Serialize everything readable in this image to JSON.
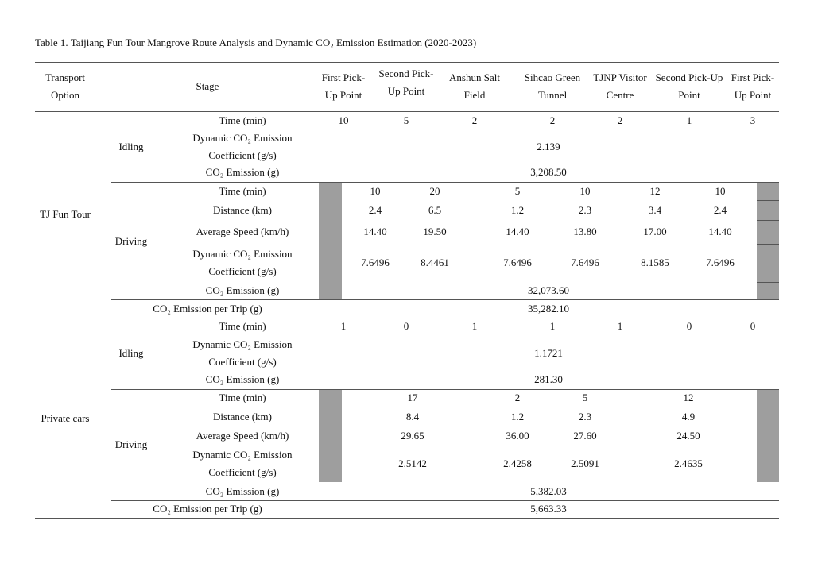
{
  "title": "Table 1. Taijiang Fun Tour Mangrove Route Analysis and Dynamic CO₂ Emission Estimation (2020-2023)",
  "table": {
    "header": {
      "transport_option": "Transport Option",
      "stage": "Stage",
      "locations": [
        "First Pick-Up Point",
        "Second Pick-Up Point",
        "Anshun Salt Field",
        "Sihcao Green Tunnel",
        "TJNP Visitor Centre",
        "Second Pick-Up Point",
        "First Pick-Up Point"
      ]
    },
    "sections": [
      {
        "option": "TJ Fun Tour",
        "idling": {
          "label": "Idling",
          "time": {
            "label": "Time (min)",
            "values": [
              "10",
              "5",
              "2",
              "2",
              "2",
              "1",
              "3"
            ]
          },
          "coefficient": {
            "label": "Dynamic CO₂ Emission Coefficient (g/s)",
            "value": "2.139"
          },
          "emission": {
            "label": "CO₂ Emission (g)",
            "value": "3,208.50"
          }
        },
        "driving": {
          "label": "Driving",
          "time": {
            "label": "Time (min)",
            "values": [
              "10",
              "20",
              "5",
              "10",
              "12",
              "10"
            ]
          },
          "distance": {
            "label": "Distance (km)",
            "values": [
              "2.4",
              "6.5",
              "1.2",
              "2.3",
              "3.4",
              "2.4"
            ]
          },
          "speed": {
            "label": "Average Speed (km/h)",
            "values": [
              "14.40",
              "19.50",
              "14.40",
              "13.80",
              "17.00",
              "14.40"
            ]
          },
          "coefficient": {
            "label": "Dynamic CO₂ Emission Coefficient (g/s)",
            "values": [
              "7.6496",
              "8.4461",
              "7.6496",
              "7.6496",
              "8.1585",
              "7.6496"
            ]
          },
          "emission": {
            "label": "CO₂ Emission (g)",
            "value": "32,073.60"
          }
        },
        "per_trip": {
          "label": "CO₂ Emission per Trip (g)",
          "value": "35,282.10"
        }
      },
      {
        "option": "Private cars",
        "idling": {
          "label": "Idling",
          "time": {
            "label": "Time (min)",
            "values": [
              "1",
              "0",
              "1",
              "1",
              "1",
              "0",
              "0"
            ]
          },
          "coefficient": {
            "label": "Dynamic CO₂ Emission Coefficient (g/s)",
            "value": "1.1721"
          },
          "emission": {
            "label": "CO₂ Emission (g)",
            "value": "281.30"
          }
        },
        "driving": {
          "label": "Driving",
          "time": {
            "label": "Time (min)",
            "values": [
              "17",
              "2",
              "5",
              "12"
            ]
          },
          "distance": {
            "label": "Distance (km)",
            "values": [
              "8.4",
              "1.2",
              "2.3",
              "4.9"
            ]
          },
          "speed": {
            "label": "Average Speed (km/h)",
            "values": [
              "29.65",
              "36.00",
              "27.60",
              "24.50"
            ]
          },
          "coefficient": {
            "label": "Dynamic CO₂ Emission Coefficient (g/s)",
            "values": [
              "2.5142",
              "2.4258",
              "2.5091",
              "2.4635"
            ]
          },
          "emission": {
            "label": "CO₂ Emission (g)",
            "value": "5,382.03"
          }
        },
        "per_trip": {
          "label": "CO₂ Emission per Trip (g)",
          "value": "5,663.33"
        }
      }
    ]
  }
}
